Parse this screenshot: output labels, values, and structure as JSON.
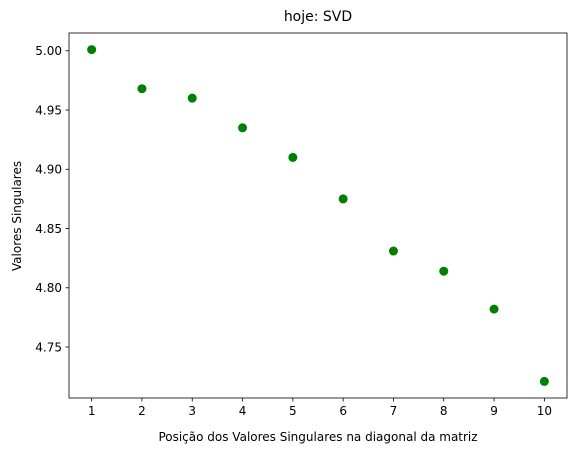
{
  "chart_data": {
    "type": "scatter",
    "title": "hoje: SVD",
    "xlabel": "Posição dos Valores Singulares na diagonal da matriz",
    "ylabel": "Valores Singulares",
    "x": [
      1,
      2,
      3,
      4,
      5,
      6,
      7,
      8,
      9,
      10
    ],
    "y": [
      5.001,
      4.968,
      4.96,
      4.935,
      4.91,
      4.875,
      4.831,
      4.814,
      4.782,
      4.721
    ],
    "xlim": [
      0.55,
      10.45
    ],
    "ylim": [
      4.707,
      5.015
    ],
    "xticks": [
      "1",
      "2",
      "3",
      "4",
      "5",
      "6",
      "7",
      "8",
      "9",
      "10"
    ],
    "yticks": [
      "4.75",
      "4.80",
      "4.85",
      "4.90",
      "4.95",
      "5.00"
    ],
    "marker_color": "#008000",
    "grid": false,
    "legend": "none"
  }
}
